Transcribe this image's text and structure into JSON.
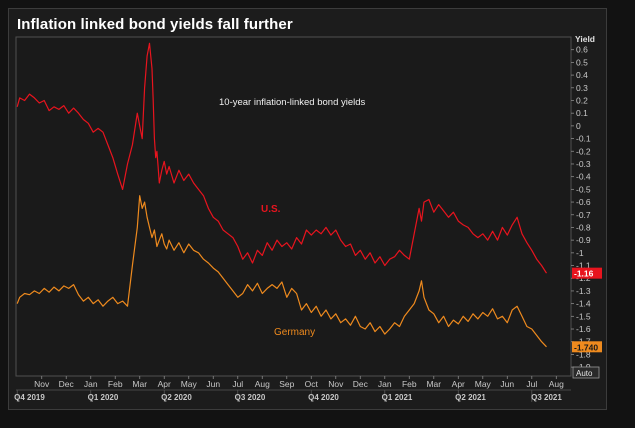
{
  "chart_data": {
    "type": "line",
    "title": "Inflation linked bond yields fall further",
    "annotation": "10-year inflation-linked bond yields",
    "ylabel": "Yield",
    "ylim": [
      -1.97,
      0.7
    ],
    "yticks": [
      "0.6",
      "0.5",
      "0.4",
      "0.3",
      "0.2",
      "0.1",
      "0",
      "-0.1",
      "-0.2",
      "-0.3",
      "-0.4",
      "-0.5",
      "-0.6",
      "-0.7",
      "-0.8",
      "-0.9",
      "-1",
      "-1.1",
      "-1.2",
      "-1.3",
      "-1.4",
      "-1.5",
      "-1.6",
      "-1.7",
      "-1.8",
      "-1.9"
    ],
    "ytick_values": [
      0.6,
      0.5,
      0.4,
      0.3,
      0.2,
      0.1,
      0,
      -0.1,
      -0.2,
      -0.3,
      -0.4,
      -0.5,
      -0.6,
      -0.7,
      -0.8,
      -0.9,
      -1.0,
      -1.1,
      -1.2,
      -1.3,
      -1.4,
      -1.5,
      -1.6,
      -1.7,
      -1.8,
      -1.9
    ],
    "month_labels": [
      "Nov",
      "Dec",
      "Jan",
      "Feb",
      "Mar",
      "Apr",
      "May",
      "Jun",
      "Jul",
      "Aug",
      "Sep",
      "Oct",
      "Nov",
      "Dec",
      "Jan",
      "Feb",
      "Mar",
      "Apr",
      "May",
      "Jun",
      "Jul",
      "Aug"
    ],
    "month_index": [
      1,
      2,
      3,
      4,
      5,
      6,
      7,
      8,
      9,
      10,
      11,
      12,
      13,
      14,
      15,
      16,
      17,
      18,
      19,
      20,
      21,
      22
    ],
    "quarter_labels": [
      "Q4 2019",
      "Q1 2020",
      "Q2 2020",
      "Q3 2020",
      "Q4 2020",
      "Q1 2021",
      "Q2 2021",
      "Q3 2021"
    ],
    "quarter_index": [
      0.5,
      3.5,
      6.5,
      9.5,
      12.5,
      15.5,
      18.5,
      21.6
    ],
    "xlim": [
      -0.05,
      22.6
    ],
    "auto_label": "Auto",
    "series": [
      {
        "name": "U.S.",
        "color": "#e8141e",
        "last_value_label": "-1.16",
        "last_value": -1.16,
        "x": [
          0.0,
          0.1,
          0.3,
          0.5,
          0.7,
          0.9,
          1.1,
          1.3,
          1.5,
          1.7,
          1.9,
          2.1,
          2.3,
          2.5,
          2.7,
          2.9,
          3.1,
          3.3,
          3.5,
          3.7,
          3.9,
          4.1,
          4.3,
          4.5,
          4.7,
          4.9,
          5.0,
          5.1,
          5.2,
          5.3,
          5.4,
          5.5,
          5.55,
          5.6,
          5.65,
          5.7,
          5.75,
          5.8,
          5.9,
          6.0,
          6.1,
          6.2,
          6.4,
          6.6,
          6.8,
          7.0,
          7.2,
          7.4,
          7.6,
          7.8,
          8.0,
          8.2,
          8.4,
          8.6,
          8.8,
          9.0,
          9.2,
          9.4,
          9.6,
          9.8,
          10.0,
          10.2,
          10.4,
          10.6,
          10.8,
          11.0,
          11.2,
          11.4,
          11.6,
          11.8,
          12.0,
          12.2,
          12.4,
          12.6,
          12.8,
          13.0,
          13.2,
          13.4,
          13.6,
          13.8,
          14.0,
          14.2,
          14.4,
          14.6,
          14.8,
          15.0,
          15.2,
          15.4,
          15.6,
          15.8,
          16.0,
          16.2,
          16.4,
          16.5,
          16.6,
          16.8,
          17.0,
          17.2,
          17.4,
          17.6,
          17.8,
          18.0,
          18.2,
          18.4,
          18.6,
          18.8,
          19.0,
          19.2,
          19.4,
          19.6,
          19.8,
          20.0,
          20.2,
          20.4,
          20.6,
          20.8,
          21.0,
          21.2,
          21.4,
          21.6
        ],
        "y": [
          0.15,
          0.22,
          0.2,
          0.25,
          0.22,
          0.18,
          0.2,
          0.12,
          0.15,
          0.13,
          0.16,
          0.1,
          0.14,
          0.1,
          0.05,
          0.02,
          -0.05,
          -0.02,
          -0.05,
          -0.15,
          -0.25,
          -0.38,
          -0.5,
          -0.3,
          -0.15,
          0.1,
          0.0,
          -0.1,
          0.3,
          0.55,
          0.65,
          0.45,
          0.2,
          -0.1,
          -0.25,
          -0.2,
          -0.32,
          -0.45,
          -0.35,
          -0.28,
          -0.38,
          -0.32,
          -0.45,
          -0.35,
          -0.43,
          -0.38,
          -0.45,
          -0.5,
          -0.55,
          -0.65,
          -0.72,
          -0.75,
          -0.82,
          -0.85,
          -0.88,
          -0.95,
          -1.05,
          -1.0,
          -1.08,
          -0.98,
          -1.02,
          -0.92,
          -0.98,
          -0.9,
          -0.95,
          -0.92,
          -0.97,
          -0.88,
          -0.93,
          -0.82,
          -0.86,
          -0.82,
          -0.85,
          -0.8,
          -0.86,
          -0.82,
          -0.9,
          -0.95,
          -0.93,
          -1.02,
          -0.98,
          -1.05,
          -1.0,
          -1.08,
          -1.03,
          -1.1,
          -1.05,
          -1.03,
          -0.98,
          -1.02,
          -1.05,
          -0.85,
          -0.65,
          -0.75,
          -0.6,
          -0.58,
          -0.68,
          -0.62,
          -0.67,
          -0.72,
          -0.68,
          -0.75,
          -0.78,
          -0.8,
          -0.85,
          -0.88,
          -0.85,
          -0.9,
          -0.83,
          -0.9,
          -0.8,
          -0.86,
          -0.78,
          -0.72,
          -0.85,
          -0.92,
          -0.98,
          -1.05,
          -1.1,
          -1.16
        ]
      },
      {
        "name": "Germany",
        "color": "#ee8a1e",
        "last_value_label": "-1.740",
        "last_value": -1.74,
        "x": [
          0.0,
          0.1,
          0.3,
          0.5,
          0.7,
          0.9,
          1.1,
          1.3,
          1.5,
          1.7,
          1.9,
          2.1,
          2.3,
          2.5,
          2.7,
          2.9,
          3.1,
          3.3,
          3.5,
          3.7,
          3.9,
          4.1,
          4.3,
          4.5,
          4.7,
          4.9,
          5.0,
          5.1,
          5.2,
          5.3,
          5.4,
          5.5,
          5.6,
          5.7,
          5.8,
          5.9,
          6.0,
          6.1,
          6.2,
          6.4,
          6.6,
          6.8,
          7.0,
          7.2,
          7.4,
          7.6,
          7.8,
          8.0,
          8.2,
          8.4,
          8.6,
          8.8,
          9.0,
          9.2,
          9.4,
          9.6,
          9.8,
          10.0,
          10.2,
          10.4,
          10.6,
          10.8,
          11.0,
          11.2,
          11.4,
          11.6,
          11.8,
          12.0,
          12.2,
          12.4,
          12.6,
          12.8,
          13.0,
          13.2,
          13.4,
          13.6,
          13.8,
          14.0,
          14.2,
          14.4,
          14.6,
          14.8,
          15.0,
          15.2,
          15.4,
          15.6,
          15.8,
          16.0,
          16.2,
          16.4,
          16.5,
          16.6,
          16.8,
          17.0,
          17.2,
          17.4,
          17.6,
          17.8,
          18.0,
          18.2,
          18.4,
          18.6,
          18.8,
          19.0,
          19.2,
          19.4,
          19.6,
          19.8,
          20.0,
          20.2,
          20.4,
          20.6,
          20.8,
          21.0,
          21.2,
          21.4,
          21.6
        ],
        "y": [
          -1.4,
          -1.35,
          -1.32,
          -1.33,
          -1.3,
          -1.32,
          -1.28,
          -1.31,
          -1.27,
          -1.3,
          -1.26,
          -1.28,
          -1.25,
          -1.33,
          -1.38,
          -1.35,
          -1.4,
          -1.37,
          -1.42,
          -1.38,
          -1.35,
          -1.4,
          -1.38,
          -1.42,
          -1.1,
          -0.8,
          -0.55,
          -0.65,
          -0.6,
          -0.72,
          -0.8,
          -0.88,
          -0.82,
          -0.95,
          -0.9,
          -0.85,
          -0.93,
          -0.97,
          -0.9,
          -0.98,
          -0.92,
          -1.0,
          -0.93,
          -0.98,
          -1.0,
          -1.05,
          -1.08,
          -1.12,
          -1.15,
          -1.2,
          -1.25,
          -1.3,
          -1.35,
          -1.32,
          -1.25,
          -1.3,
          -1.24,
          -1.32,
          -1.28,
          -1.25,
          -1.28,
          -1.23,
          -1.35,
          -1.28,
          -1.32,
          -1.45,
          -1.4,
          -1.47,
          -1.42,
          -1.5,
          -1.45,
          -1.52,
          -1.48,
          -1.55,
          -1.52,
          -1.57,
          -1.5,
          -1.58,
          -1.6,
          -1.55,
          -1.62,
          -1.58,
          -1.64,
          -1.6,
          -1.55,
          -1.58,
          -1.5,
          -1.45,
          -1.4,
          -1.3,
          -1.22,
          -1.35,
          -1.45,
          -1.48,
          -1.55,
          -1.5,
          -1.58,
          -1.53,
          -1.56,
          -1.5,
          -1.54,
          -1.48,
          -1.52,
          -1.47,
          -1.5,
          -1.44,
          -1.52,
          -1.5,
          -1.55,
          -1.45,
          -1.42,
          -1.5,
          -1.58,
          -1.6,
          -1.65,
          -1.7,
          -1.74
        ]
      }
    ]
  }
}
